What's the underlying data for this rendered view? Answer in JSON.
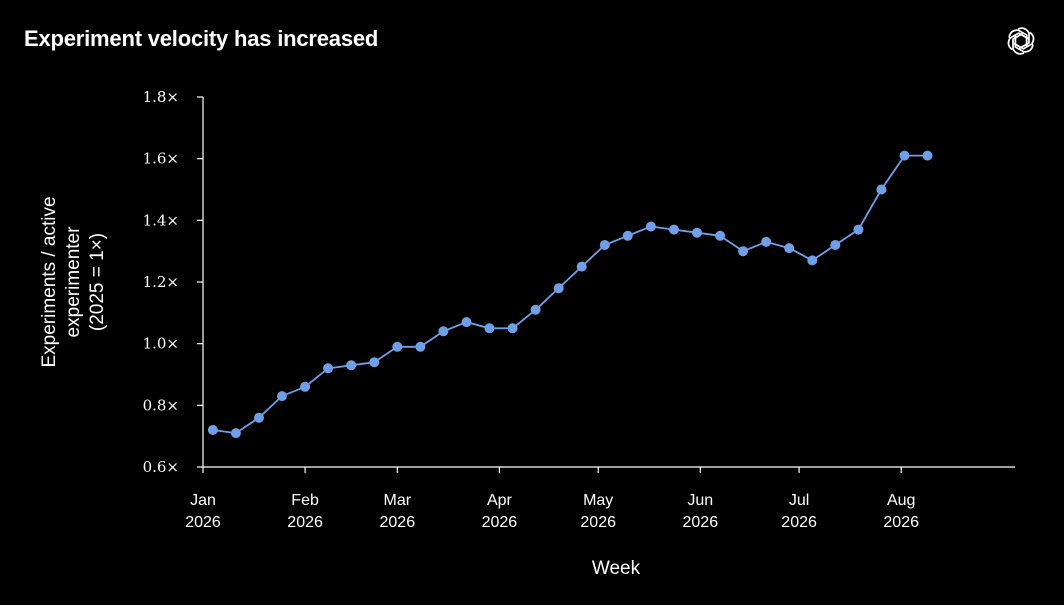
{
  "header": {
    "title": "Experiment velocity has increased",
    "logo_icon": "openai-logo-icon"
  },
  "colors": {
    "background": "#000000",
    "text": "#ffffff",
    "axis": "#ffffff",
    "series": "#6f9fe6"
  },
  "chart_data": {
    "type": "line",
    "title": "Experiment velocity has increased",
    "xlabel": "Week",
    "ylabel_lines": [
      "Experiments / active",
      "experimenter",
      "(2025 = 1×)"
    ],
    "ylim": [
      0.6,
      1.8
    ],
    "y_ticks": [
      {
        "value": 0.6,
        "label": "0.6×"
      },
      {
        "value": 0.8,
        "label": "0.8×"
      },
      {
        "value": 1.0,
        "label": "1.0×"
      },
      {
        "value": 1.2,
        "label": "1.2×"
      },
      {
        "value": 1.4,
        "label": "1.4×"
      },
      {
        "value": 1.6,
        "label": "1.6×"
      },
      {
        "value": 1.8,
        "label": "1.8×"
      }
    ],
    "xlim": [
      "2026-01-01",
      "2026-08-31"
    ],
    "x_ticks": [
      {
        "date": "2026-01-01",
        "label": [
          "Jan",
          "2026"
        ]
      },
      {
        "date": "2026-02-01",
        "label": [
          "Feb",
          "2026"
        ]
      },
      {
        "date": "2026-03-01",
        "label": [
          "Mar",
          "2026"
        ]
      },
      {
        "date": "2026-04-01",
        "label": [
          "Apr",
          "2026"
        ]
      },
      {
        "date": "2026-05-01",
        "label": [
          "May",
          "2026"
        ]
      },
      {
        "date": "2026-06-01",
        "label": [
          "Jun",
          "2026"
        ]
      },
      {
        "date": "2026-07-01",
        "label": [
          "Jul",
          "2026"
        ]
      },
      {
        "date": "2026-08-01",
        "label": [
          "Aug",
          "2026"
        ]
      }
    ],
    "grid": false,
    "legend": "none",
    "series": [
      {
        "points": [
          {
            "x": "2026-01-04",
            "y": 0.72
          },
          {
            "x": "2026-01-11",
            "y": 0.71
          },
          {
            "x": "2026-01-18",
            "y": 0.76
          },
          {
            "x": "2026-01-25",
            "y": 0.83
          },
          {
            "x": "2026-02-01",
            "y": 0.86
          },
          {
            "x": "2026-02-08",
            "y": 0.92
          },
          {
            "x": "2026-02-15",
            "y": 0.93
          },
          {
            "x": "2026-02-22",
            "y": 0.94
          },
          {
            "x": "2026-03-01",
            "y": 0.99
          },
          {
            "x": "2026-03-08",
            "y": 0.99
          },
          {
            "x": "2026-03-15",
            "y": 1.04
          },
          {
            "x": "2026-03-22",
            "y": 1.07
          },
          {
            "x": "2026-03-29",
            "y": 1.05
          },
          {
            "x": "2026-04-05",
            "y": 1.05
          },
          {
            "x": "2026-04-12",
            "y": 1.11
          },
          {
            "x": "2026-04-19",
            "y": 1.18
          },
          {
            "x": "2026-04-26",
            "y": 1.25
          },
          {
            "x": "2026-05-03",
            "y": 1.32
          },
          {
            "x": "2026-05-10",
            "y": 1.35
          },
          {
            "x": "2026-05-17",
            "y": 1.38
          },
          {
            "x": "2026-05-24",
            "y": 1.37
          },
          {
            "x": "2026-05-31",
            "y": 1.36
          },
          {
            "x": "2026-06-07",
            "y": 1.35
          },
          {
            "x": "2026-06-14",
            "y": 1.3
          },
          {
            "x": "2026-06-21",
            "y": 1.33
          },
          {
            "x": "2026-06-28",
            "y": 1.31
          },
          {
            "x": "2026-07-05",
            "y": 1.27
          },
          {
            "x": "2026-07-12",
            "y": 1.32
          },
          {
            "x": "2026-07-19",
            "y": 1.37
          },
          {
            "x": "2026-07-26",
            "y": 1.5
          },
          {
            "x": "2026-08-02",
            "y": 1.61
          },
          {
            "x": "2026-08-09",
            "y": 1.61
          }
        ]
      }
    ]
  }
}
